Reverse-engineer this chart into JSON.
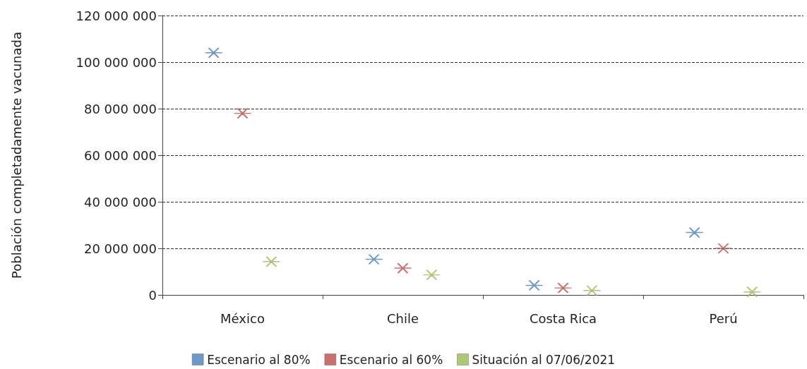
{
  "chart_data": {
    "type": "scatter",
    "ylabel": "Población completadamente vacunada",
    "categories": [
      "México",
      "Chile",
      "Costa Rica",
      "Perú"
    ],
    "series": [
      {
        "name": "Escenario al 80%",
        "color": "#4a7ebb",
        "values": [
          104000000,
          15300000,
          4100000,
          26800000
        ]
      },
      {
        "name": "Escenario al 60%",
        "color": "#be4b48",
        "values": [
          78000000,
          11500000,
          3000000,
          20000000
        ]
      },
      {
        "name": "Situación al 07/06/2021",
        "color": "#98b954",
        "values": [
          14300000,
          8600000,
          1900000,
          1300000
        ]
      }
    ],
    "ylim": [
      0,
      120000000
    ],
    "yticks": [
      {
        "value": 0,
        "label": "0"
      },
      {
        "value": 20000000,
        "label": "20 000 000"
      },
      {
        "value": 40000000,
        "label": "40 000 000"
      },
      {
        "value": 60000000,
        "label": "60 000 000"
      },
      {
        "value": 80000000,
        "label": "80 000 000"
      },
      {
        "value": 100000000,
        "label": "100 000 000"
      },
      {
        "value": 120000000,
        "label": "120 000 000"
      }
    ],
    "grid": "y",
    "legend": "bottom",
    "marker": "cross"
  }
}
